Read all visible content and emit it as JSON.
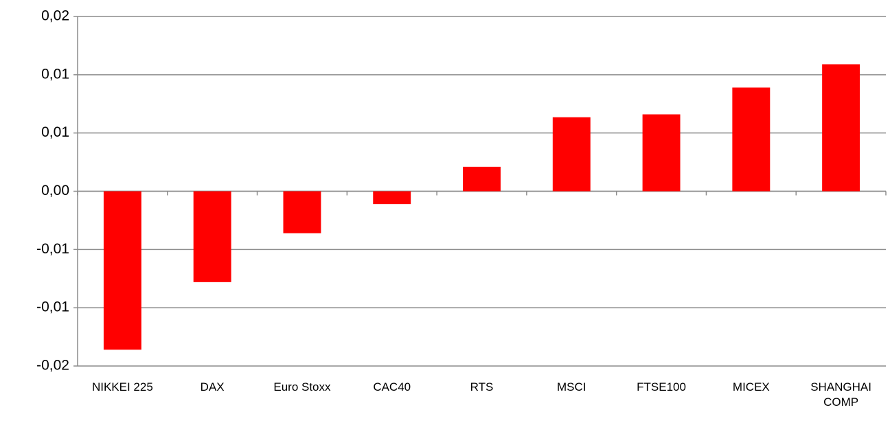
{
  "chart_data": {
    "type": "bar",
    "categories": [
      "NIKKEI 225",
      "DAX",
      "Euro Stoxx",
      "CAC40",
      "RTS",
      "MSCI",
      "FTSE100",
      "MICEX",
      "SHANGHAI COMP"
    ],
    "values": [
      -0.0136,
      -0.0078,
      -0.0036,
      -0.0011,
      0.0021,
      0.00635,
      0.0066,
      0.0089,
      0.0109
    ],
    "color": "#ff0000",
    "ylim": [
      -0.015,
      0.015
    ],
    "yticks": [
      {
        "value": -0.015,
        "label": "-0,02"
      },
      {
        "value": -0.01,
        "label": "-0,01"
      },
      {
        "value": -0.005,
        "label": "-0,01"
      },
      {
        "value": 0,
        "label": "0,00"
      },
      {
        "value": 0.005,
        "label": "0,01"
      },
      {
        "value": 0.01,
        "label": "0,01"
      },
      {
        "value": 0.015,
        "label": "0,02"
      }
    ],
    "grid": true
  }
}
